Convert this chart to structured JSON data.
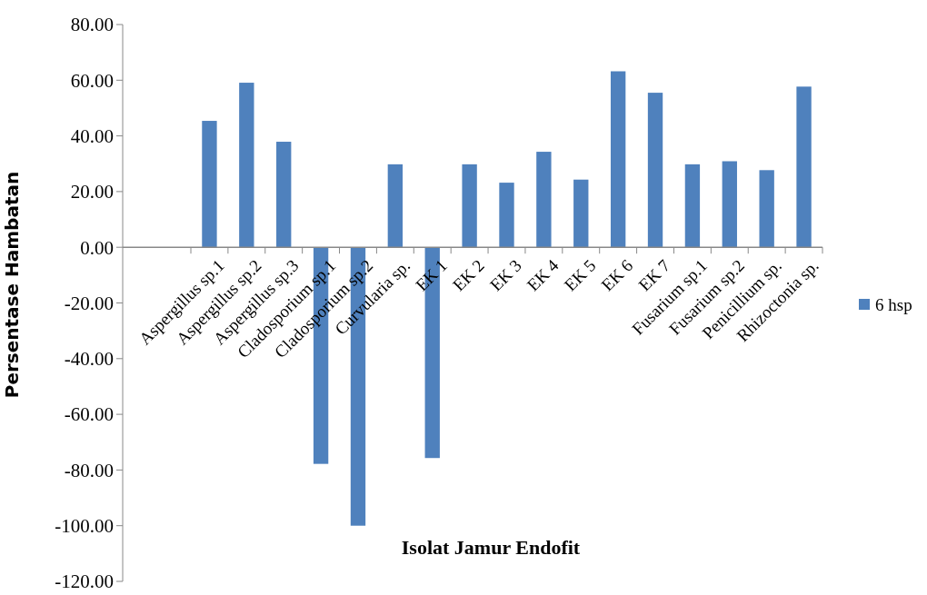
{
  "chart_data": {
    "type": "bar",
    "xlabel": "Isolat Jamur Endofit",
    "ylabel": "Persentase Hambatan",
    "categories": [
      "Aspergillus sp.1",
      "Aspergillus sp.2",
      "Aspergillus sp.3",
      "Cladosporium sp.1",
      "Cladosporium sp.2",
      "Curvularia sp.",
      "EK 1",
      "EK 2",
      "EK 3",
      "EK 4",
      "EK 5",
      "EK 6",
      "EK 7",
      "Fusarium sp.1",
      "Fusarium sp.2",
      "Penicillium sp.",
      "Rhizoctonia sp."
    ],
    "series": [
      {
        "name": "6 hsp",
        "color": "#4f81bd",
        "values": [
          45.4,
          59.1,
          37.9,
          -77.8,
          -100,
          29.8,
          -75.7,
          29.8,
          23.2,
          34.3,
          24.3,
          63.2,
          55.5,
          29.8,
          30.9,
          27.7,
          57.7
        ]
      }
    ],
    "ylim": [
      -120,
      80
    ],
    "yticks": [
      {
        "value": 80,
        "label": "80.00"
      },
      {
        "value": 60,
        "label": "60.00"
      },
      {
        "value": 40,
        "label": "40.00"
      },
      {
        "value": 20,
        "label": "20.00"
      },
      {
        "value": 0,
        "label": "0.00"
      },
      {
        "value": -20,
        "label": "-20.00"
      },
      {
        "value": -40,
        "label": "-40.00"
      },
      {
        "value": -60,
        "label": "-60.00"
      },
      {
        "value": -80,
        "label": "-80.00"
      },
      {
        "value": -100,
        "label": "-100.00"
      },
      {
        "value": -120,
        "label": "-120.00"
      }
    ],
    "grid": false,
    "legend": "right"
  }
}
